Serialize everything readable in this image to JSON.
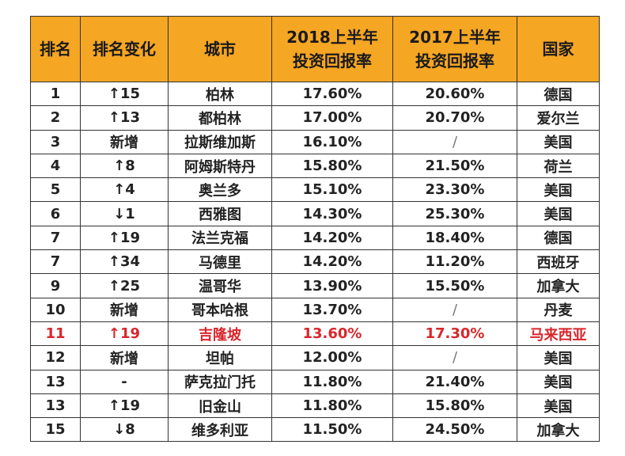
{
  "headers": {
    "rank": "排名",
    "change": "排名变化",
    "city": "城市",
    "h1_2018_line1": "2018上半年",
    "h1_2018_line2": "投资回报率",
    "h1_2017_line1": "2017上半年",
    "h1_2017_line2": "投资回报率",
    "country": "国家"
  },
  "rows": [
    {
      "rank": "1",
      "change": "↑15",
      "city": "柏林",
      "r2018": "17.60%",
      "r2017": "20.60%",
      "country": "德国"
    },
    {
      "rank": "2",
      "change": "↑13",
      "city": "都柏林",
      "r2018": "17.00%",
      "r2017": "20.70%",
      "country": "爱尔兰"
    },
    {
      "rank": "3",
      "change": "新增",
      "city": "拉斯维加斯",
      "r2018": "16.10%",
      "r2017": "/",
      "country": "美国"
    },
    {
      "rank": "4",
      "change": "↑8",
      "city": "阿姆斯特丹",
      "r2018": "15.80%",
      "r2017": "21.50%",
      "country": "荷兰"
    },
    {
      "rank": "5",
      "change": "↑4",
      "city": "奥兰多",
      "r2018": "15.10%",
      "r2017": "23.30%",
      "country": "美国"
    },
    {
      "rank": "6",
      "change": "↓1",
      "city": "西雅图",
      "r2018": "14.30%",
      "r2017": "25.30%",
      "country": "美国"
    },
    {
      "rank": "7",
      "change": "↑19",
      "city": "法兰克福",
      "r2018": "14.20%",
      "r2017": "18.40%",
      "country": "德国"
    },
    {
      "rank": "7",
      "change": "↑34",
      "city": "马德里",
      "r2018": "14.20%",
      "r2017": "11.20%",
      "country": "西班牙"
    },
    {
      "rank": "9",
      "change": "↑25",
      "city": "温哥华",
      "r2018": "13.90%",
      "r2017": "15.50%",
      "country": "加拿大"
    },
    {
      "rank": "10",
      "change": "新增",
      "city": "哥本哈根",
      "r2018": "13.70%",
      "r2017": "/",
      "country": "丹麦"
    },
    {
      "rank": "11",
      "change": "↑19",
      "city": "吉隆坡",
      "r2018": "13.60%",
      "r2017": "17.30%",
      "country": "马来西亚",
      "highlight": true
    },
    {
      "rank": "12",
      "change": "新增",
      "city": "坦帕",
      "r2018": "12.00%",
      "r2017": "/",
      "country": "美国"
    },
    {
      "rank": "13",
      "change": "-",
      "city": "萨克拉门托",
      "r2018": "11.80%",
      "r2017": "21.40%",
      "country": "美国"
    },
    {
      "rank": "13",
      "change": "↑19",
      "city": "旧金山",
      "r2018": "11.80%",
      "r2017": "15.80%",
      "country": "美国"
    },
    {
      "rank": "15",
      "change": "↓8",
      "city": "维多利亚",
      "r2018": "11.50%",
      "r2017": "24.50%",
      "country": "加拿大"
    }
  ],
  "colors": {
    "header_bg": "#f5a623",
    "highlight_text": "#d9262c",
    "border": "#333333"
  }
}
